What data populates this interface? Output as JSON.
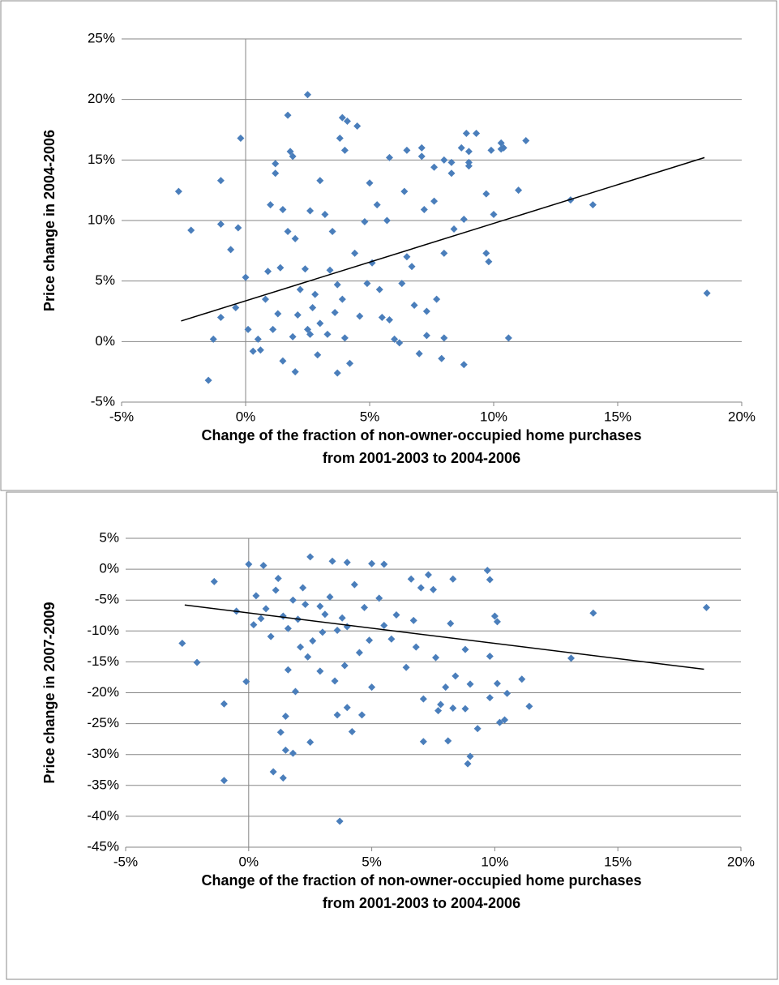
{
  "chart_data": [
    {
      "type": "scatter",
      "y_label": "Price change in 2004-2006",
      "x_label": [
        "Change of the fraction of non-owner-occupied home purchases",
        "from 2001-2003 to 2004-2006"
      ],
      "xlim": [
        -5,
        20
      ],
      "ylim": [
        -5,
        25
      ],
      "xticks": [
        {
          "value": -5,
          "label": "-5%"
        },
        {
          "value": 0,
          "label": "0%"
        },
        {
          "value": 5,
          "label": "5%"
        },
        {
          "value": 10,
          "label": "10%"
        },
        {
          "value": 15,
          "label": "15%"
        },
        {
          "value": 20,
          "label": "20%"
        }
      ],
      "yticks": [
        {
          "value": -5,
          "label": "-5%"
        },
        {
          "value": 0,
          "label": "0%"
        },
        {
          "value": 5,
          "label": "5%"
        },
        {
          "value": 10,
          "label": "10%"
        },
        {
          "value": 15,
          "label": "15%"
        },
        {
          "value": 20,
          "label": "20%"
        },
        {
          "value": 25,
          "label": "25%"
        }
      ],
      "grid": true,
      "series": [
        {
          "color": "#4a7ebb",
          "x": [
            18.6,
            14.0,
            13.1,
            11.3,
            11.0,
            10.6,
            10.3,
            10.3,
            10.4,
            9.9,
            10.0,
            9.8,
            9.7,
            9.7,
            9.3,
            9.0,
            9.0,
            9.0,
            8.9,
            8.8,
            8.7,
            8.8,
            8.4,
            8.3,
            8.3,
            8.0,
            8.0,
            8.0,
            7.9,
            7.7,
            7.6,
            7.6,
            7.3,
            7.1,
            7.1,
            7.2,
            7.0,
            6.8,
            6.5,
            6.5,
            6.4,
            6.3,
            6.0,
            5.8,
            5.7,
            5.3,
            5.0,
            4.9,
            4.5,
            4.1,
            3.9,
            4.0,
            3.8,
            2.5,
            1.7,
            1.8,
            1.9,
            1.2,
            -0.2,
            -1.0,
            -2.7,
            -2.2,
            -1.0,
            -0.6,
            -0.3,
            -1.5,
            -1.3,
            -1.0,
            -0.4,
            0.0,
            0.1,
            0.3,
            0.6,
            1.0,
            1.2,
            1.5,
            1.7,
            2.0,
            2.4,
            2.6,
            3.0,
            3.2,
            3.5,
            3.7,
            3.7,
            4.2,
            2.9,
            2.0,
            1.5,
            2.5,
            3.0,
            3.3,
            2.7,
            3.9,
            4.4,
            4.6,
            5.1,
            5.4,
            5.8,
            6.7,
            0.8,
            1.1,
            1.4,
            2.2,
            2.6,
            3.6,
            4.0,
            4.8,
            5.5,
            6.2,
            7.3,
            1.9,
            2.1,
            2.8,
            3.4,
            0.5,
            0.9,
            1.3
          ],
          "values": [
            4.0,
            11.3,
            11.7,
            16.6,
            12.5,
            0.3,
            16.4,
            15.9,
            16.0,
            15.8,
            10.5,
            6.6,
            7.3,
            12.2,
            17.2,
            15.7,
            14.8,
            14.5,
            17.2,
            -1.9,
            16.0,
            10.1,
            9.3,
            14.8,
            13.9,
            15.0,
            7.3,
            0.3,
            -1.4,
            3.5,
            14.4,
            11.6,
            0.5,
            15.3,
            16.0,
            10.9,
            -1.0,
            3.0,
            15.8,
            7.0,
            12.4,
            4.8,
            0.2,
            15.2,
            10.0,
            11.3,
            13.1,
            4.8,
            17.8,
            18.2,
            18.5,
            15.8,
            16.8,
            20.4,
            18.7,
            15.7,
            15.3,
            14.7,
            16.8,
            13.3,
            12.4,
            9.2,
            9.7,
            7.6,
            9.4,
            -3.2,
            0.2,
            2.0,
            2.8,
            5.3,
            1.0,
            -0.8,
            -0.7,
            11.3,
            13.9,
            10.9,
            9.1,
            8.5,
            6.0,
            10.8,
            13.3,
            10.5,
            9.1,
            4.7,
            -2.6,
            -1.8,
            -1.1,
            -2.5,
            -1.6,
            1.0,
            1.5,
            0.6,
            2.8,
            3.5,
            7.3,
            2.1,
            6.5,
            4.3,
            1.8,
            6.2,
            3.5,
            1.0,
            6.1,
            4.3,
            0.6,
            2.4,
            0.3,
            9.9,
            2.0,
            -0.1,
            2.5,
            0.4,
            2.2,
            3.9,
            5.9,
            0.2,
            5.8,
            2.3
          ]
        }
      ],
      "trendline": {
        "color": "#000000",
        "x": [
          -2.6,
          18.5
        ],
        "values": [
          1.7,
          15.2
        ]
      }
    },
    {
      "type": "scatter",
      "y_label": "Price change in 2007-2009",
      "x_label": [
        "Change of the fraction of non-owner-occupied home purchases",
        "from 2001-2003 to 2004-2006"
      ],
      "xlim": [
        -5,
        20
      ],
      "ylim": [
        -45,
        5
      ],
      "xticks": [
        {
          "value": -5,
          "label": "-5%"
        },
        {
          "value": 0,
          "label": "0%"
        },
        {
          "value": 5,
          "label": "5%"
        },
        {
          "value": 10,
          "label": "10%"
        },
        {
          "value": 15,
          "label": "15%"
        },
        {
          "value": 20,
          "label": "20%"
        }
      ],
      "yticks": [
        {
          "value": -45,
          "label": "-45%"
        },
        {
          "value": -40,
          "label": "-40%"
        },
        {
          "value": -35,
          "label": "-35%"
        },
        {
          "value": -30,
          "label": "-30%"
        },
        {
          "value": -25,
          "label": "-25%"
        },
        {
          "value": -20,
          "label": "-20%"
        },
        {
          "value": -15,
          "label": "-15%"
        },
        {
          "value": -10,
          "label": "-10%"
        },
        {
          "value": -5,
          "label": "-5%"
        },
        {
          "value": 0,
          "label": "0%"
        },
        {
          "value": 5,
          "label": "5%"
        }
      ],
      "grid": true,
      "series": [
        {
          "color": "#4a7ebb",
          "x": [
            18.6,
            14.0,
            13.1,
            11.4,
            11.1,
            10.5,
            10.4,
            10.2,
            10.1,
            10.1,
            10.0,
            9.8,
            9.7,
            9.8,
            9.8,
            9.3,
            9.0,
            8.9,
            9.0,
            8.8,
            8.8,
            8.4,
            8.3,
            8.2,
            8.1,
            8.0,
            7.8,
            7.7,
            7.6,
            8.3,
            7.5,
            7.1,
            7.1,
            7.3,
            6.8,
            6.6,
            6.4,
            5.8,
            5.0,
            4.6,
            4.2,
            4.0,
            3.7,
            3.6,
            2.5,
            1.8,
            1.5,
            1.4,
            1.0,
            1.3,
            1.5,
            -1.0,
            -1.0,
            -2.7,
            -2.1,
            -0.1,
            -0.5,
            -1.4,
            0.0,
            0.6,
            2.5,
            3.4,
            4.0,
            5.0,
            5.5,
            1.2,
            1.8,
            2.2,
            2.9,
            3.3,
            3.8,
            4.3,
            4.7,
            0.5,
            0.9,
            1.6,
            2.0,
            2.6,
            3.0,
            4.0,
            4.9,
            0.3,
            0.7,
            1.1,
            2.4,
            2.9,
            3.5,
            1.6,
            1.9,
            2.1,
            3.1,
            6.0,
            6.7,
            7.0,
            5.3,
            4.5,
            3.9,
            0.2,
            1.4,
            2.3,
            3.6,
            5.5
          ],
          "values": [
            -6.2,
            -7.1,
            -14.4,
            -22.2,
            -17.8,
            -20.1,
            -24.4,
            -24.8,
            -18.5,
            -8.5,
            -7.6,
            -1.7,
            -0.2,
            -14.1,
            -20.8,
            -25.8,
            -30.3,
            -31.5,
            -18.6,
            -13.0,
            -22.6,
            -17.3,
            -22.5,
            -8.8,
            -27.8,
            -19.1,
            -21.9,
            -22.9,
            -14.3,
            -1.6,
            -3.3,
            -21.0,
            -27.9,
            -0.9,
            -12.6,
            -1.6,
            -15.9,
            -11.3,
            -19.1,
            -23.6,
            -26.3,
            -22.4,
            -40.8,
            -23.6,
            -28.0,
            -29.8,
            -23.8,
            -33.8,
            -32.8,
            -26.4,
            -29.3,
            -34.2,
            -21.8,
            -12.0,
            -15.1,
            -18.2,
            -6.8,
            -2.0,
            0.8,
            0.6,
            2.0,
            1.3,
            1.1,
            0.9,
            0.8,
            -1.5,
            -5.0,
            -3.0,
            -6.0,
            -4.5,
            -7.9,
            -2.5,
            -6.2,
            -8.0,
            -10.9,
            -9.6,
            -8.1,
            -11.6,
            -10.2,
            -9.3,
            -11.5,
            -4.3,
            -6.4,
            -3.4,
            -14.2,
            -16.5,
            -18.1,
            -16.3,
            -19.8,
            -12.6,
            -7.3,
            -7.4,
            -8.3,
            -3.0,
            -4.7,
            -13.5,
            -15.6,
            -9.0,
            -7.6,
            -5.7,
            -9.9,
            -9.1
          ]
        }
      ],
      "trendline": {
        "color": "#000000",
        "x": [
          -2.6,
          18.5
        ],
        "values": [
          -5.8,
          -16.2
        ]
      }
    }
  ]
}
